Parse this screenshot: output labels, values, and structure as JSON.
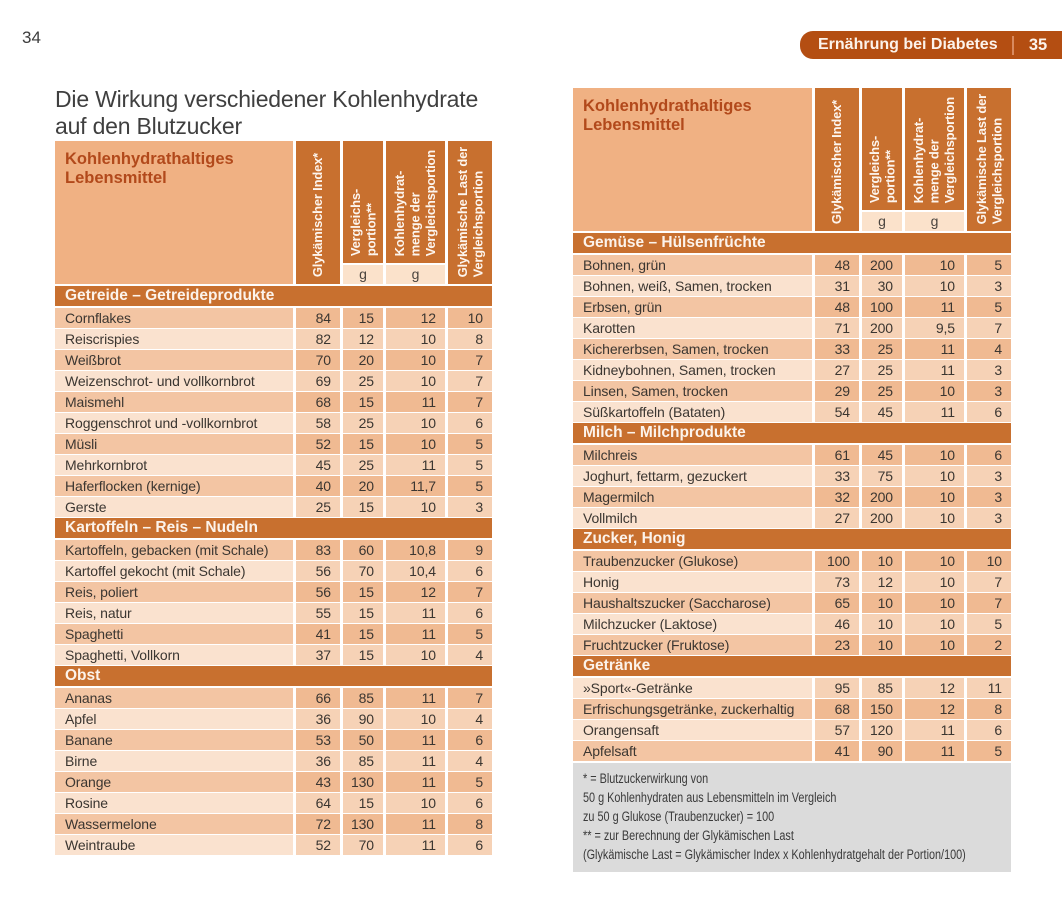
{
  "page": {
    "left_page_number": "34",
    "header_bar": {
      "label": "Ernährung bei Diabetes",
      "page_number": "35"
    },
    "title": "Die Wirkung verschiedener Kohlenhydrate auf den Blutzucker"
  },
  "colors": {
    "chapter_bar": "#b44e12",
    "section_bar": "#c8702f",
    "table_header_bg": "#f0b183",
    "table_header_text": "#b2491b",
    "row_dark": "#f3c5a3",
    "row_dark_value": "#f0ba92",
    "row_light": "#fae2cf",
    "row_light_value": "#f6d2b6",
    "unit_cell_bg": "#fbe2cb",
    "footnote_bg": "#dbdbdb"
  },
  "table_header": {
    "food_label": "Kohlenhydrathaltiges Lebensmittel",
    "unit_g": "g",
    "columns": [
      {
        "lines": [
          "Glykämischer Index*"
        ],
        "has_unit": false
      },
      {
        "lines": [
          "Vergleichs-",
          "portion**"
        ],
        "has_unit": true
      },
      {
        "lines": [
          "Kohlenhydrat-",
          "menge der",
          "Vergleichsportion"
        ],
        "has_unit": true
      },
      {
        "lines": [
          "Glykämische Last der",
          "Vergleichsportion"
        ],
        "has_unit": false
      }
    ]
  },
  "left_table": {
    "sections": [
      {
        "title": "Getreide – Getreideprodukte",
        "rows": [
          {
            "name": "Cornflakes",
            "values": [
              "84",
              "15",
              "12",
              "10"
            ]
          },
          {
            "name": "Reiscrispies",
            "values": [
              "82",
              "12",
              "10",
              "8"
            ]
          },
          {
            "name": "Weißbrot",
            "values": [
              "70",
              "20",
              "10",
              "7"
            ]
          },
          {
            "name": "Weizenschrot- und vollkornbrot",
            "values": [
              "69",
              "25",
              "10",
              "7"
            ]
          },
          {
            "name": "Maismehl",
            "values": [
              "68",
              "15",
              "11",
              "7"
            ]
          },
          {
            "name": "Roggenschrot und -vollkornbrot",
            "values": [
              "58",
              "25",
              "10",
              "6"
            ]
          },
          {
            "name": "Müsli",
            "values": [
              "52",
              "15",
              "10",
              "5"
            ]
          },
          {
            "name": "Mehrkornbrot",
            "values": [
              "45",
              "25",
              "11",
              "5"
            ]
          },
          {
            "name": "Haferflocken (kernige)",
            "values": [
              "40",
              "20",
              "11,7",
              "5"
            ]
          },
          {
            "name": "Gerste",
            "values": [
              "25",
              "15",
              "10",
              "3"
            ]
          }
        ]
      },
      {
        "title": "Kartoffeln – Reis – Nudeln",
        "rows": [
          {
            "name": "Kartoffeln, gebacken (mit Schale)",
            "values": [
              "83",
              "60",
              "10,8",
              "9"
            ]
          },
          {
            "name": "Kartoffel gekocht (mit Schale)",
            "values": [
              "56",
              "70",
              "10,4",
              "6"
            ]
          },
          {
            "name": "Reis, poliert",
            "values": [
              "56",
              "15",
              "12",
              "7"
            ]
          },
          {
            "name": "Reis, natur",
            "values": [
              "55",
              "15",
              "11",
              "6"
            ]
          },
          {
            "name": "Spaghetti",
            "values": [
              "41",
              "15",
              "11",
              "5"
            ]
          },
          {
            "name": "Spaghetti, Vollkorn",
            "values": [
              "37",
              "15",
              "10",
              "4"
            ]
          }
        ]
      },
      {
        "title": "Obst",
        "rows": [
          {
            "name": "Ananas",
            "values": [
              "66",
              "85",
              "11",
              "7"
            ]
          },
          {
            "name": "Apfel",
            "values": [
              "36",
              "90",
              "10",
              "4"
            ]
          },
          {
            "name": "Banane",
            "values": [
              "53",
              "50",
              "11",
              "6"
            ]
          },
          {
            "name": "Birne",
            "values": [
              "36",
              "85",
              "11",
              "4"
            ]
          },
          {
            "name": "Orange",
            "values": [
              "43",
              "130",
              "11",
              "5"
            ]
          },
          {
            "name": "Rosine",
            "values": [
              "64",
              "15",
              "10",
              "6"
            ]
          },
          {
            "name": "Wassermelone",
            "values": [
              "72",
              "130",
              "11",
              "8"
            ]
          },
          {
            "name": "Weintraube",
            "values": [
              "52",
              "70",
              "11",
              "6"
            ]
          }
        ]
      }
    ]
  },
  "right_table": {
    "sections": [
      {
        "title": "Gemüse – Hülsenfrüchte",
        "rows": [
          {
            "name": "Bohnen, grün",
            "values": [
              "48",
              "200",
              "10",
              "5"
            ]
          },
          {
            "name": "Bohnen, weiß, Samen, trocken",
            "values": [
              "31",
              "30",
              "10",
              "3"
            ]
          },
          {
            "name": "Erbsen, grün",
            "values": [
              "48",
              "100",
              "11",
              "5"
            ]
          },
          {
            "name": "Karotten",
            "values": [
              "71",
              "200",
              "9,5",
              "7"
            ]
          },
          {
            "name": "Kichererbsen, Samen, trocken",
            "values": [
              "33",
              "25",
              "11",
              "4"
            ]
          },
          {
            "name": "Kidneybohnen, Samen, trocken",
            "values": [
              "27",
              "25",
              "11",
              "3"
            ]
          },
          {
            "name": "Linsen, Samen, trocken",
            "values": [
              "29",
              "25",
              "10",
              "3"
            ]
          },
          {
            "name": "Süßkartoffeln (Bataten)",
            "values": [
              "54",
              "45",
              "11",
              "6"
            ]
          }
        ]
      },
      {
        "title": "Milch – Milchprodukte",
        "rows": [
          {
            "name": "Milchreis",
            "values": [
              "61",
              "45",
              "10",
              "6"
            ]
          },
          {
            "name": "Joghurt, fettarm, gezuckert",
            "values": [
              "33",
              "75",
              "10",
              "3"
            ]
          },
          {
            "name": "Magermilch",
            "values": [
              "32",
              "200",
              "10",
              "3"
            ]
          },
          {
            "name": "Vollmilch",
            "values": [
              "27",
              "200",
              "10",
              "3"
            ]
          }
        ]
      },
      {
        "title": "Zucker, Honig",
        "rows": [
          {
            "name": "Traubenzucker (Glukose)",
            "values": [
              "100",
              "10",
              "10",
              "10"
            ]
          },
          {
            "name": "Honig",
            "values": [
              "73",
              "12",
              "10",
              "7"
            ]
          },
          {
            "name": "Haushaltszucker (Saccharose)",
            "values": [
              "65",
              "10",
              "10",
              "7"
            ]
          },
          {
            "name": "Milchzucker (Laktose)",
            "values": [
              "46",
              "10",
              "10",
              "5"
            ]
          },
          {
            "name": "Fruchtzucker (Fruktose)",
            "values": [
              "23",
              "10",
              "10",
              "2"
            ]
          }
        ]
      },
      {
        "title": "Getränke",
        "rows": [
          {
            "name": "»Sport«-Getränke",
            "values": [
              "95",
              "85",
              "12",
              "11"
            ]
          },
          {
            "name": "Erfrischungsgetränke, zuckerhaltig",
            "values": [
              "68",
              "150",
              "12",
              "8"
            ]
          },
          {
            "name": "Orangensaft",
            "values": [
              "57",
              "120",
              "11",
              "6"
            ]
          },
          {
            "name": "Apfelsaft",
            "values": [
              "41",
              "90",
              "11",
              "5"
            ]
          }
        ]
      }
    ]
  },
  "footnotes": {
    "lines": [
      "* = Blutzuckerwirkung von",
      "50 g Kohlenhydraten aus Lebensmitteln im Vergleich",
      "zu 50 g Glukose (Traubenzucker) = 100",
      "** = zur Berechnung der Glykämischen Last",
      "(Glykämische Last = Glykämischer Index x Kohlenhydratgehalt der Portion/100)"
    ]
  }
}
